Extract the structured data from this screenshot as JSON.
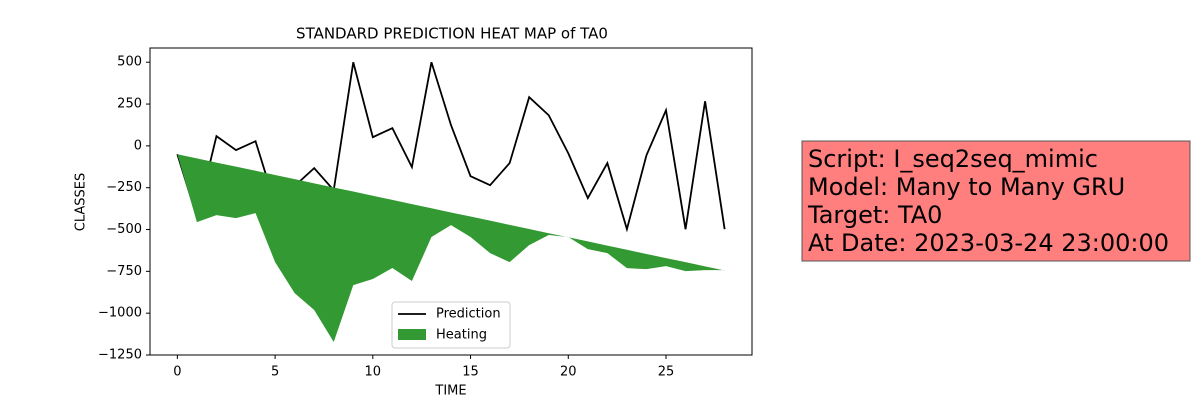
{
  "chart_data": {
    "type": "line",
    "title": "STANDARD PREDICTION HEAT MAP of TA0",
    "x_label": "TIME",
    "y_label": "CLASSES",
    "x": [
      0,
      1,
      2,
      3,
      4,
      5,
      6,
      7,
      8,
      9,
      10,
      11,
      12,
      13,
      14,
      15,
      16,
      17,
      18,
      19,
      20,
      21,
      22,
      23,
      24,
      25,
      26,
      27,
      28
    ],
    "series": [
      {
        "name": "Prediction",
        "color": "#000000",
        "kind": "line",
        "values": [
          -50,
          -425,
          58,
          -25,
          28,
          -348,
          -240,
          -133,
          -265,
          500,
          52,
          106,
          -127,
          500,
          124,
          -181,
          -235,
          -103,
          291,
          183,
          -44,
          -312,
          -103,
          -498,
          -56,
          213,
          -498,
          267,
          -498
        ]
      },
      {
        "name": "Heating",
        "color": "#339933",
        "kind": "area",
        "values": [
          -50,
          -456,
          -414,
          -432,
          -402,
          -695,
          -880,
          -981,
          -1172,
          -832,
          -796,
          -730,
          -808,
          -545,
          -474,
          -545,
          -641,
          -695,
          -593,
          -533,
          -545,
          -617,
          -641,
          -731,
          -737,
          -719,
          -749,
          -743,
          -743
        ],
        "baseline": [
          -50,
          -75,
          -100,
          -124,
          -149,
          -174,
          -199,
          -224,
          -249,
          -273,
          -298,
          -323,
          -348,
          -373,
          -398,
          -422,
          -447,
          -472,
          -497,
          -522,
          -546,
          -571,
          -596,
          -621,
          -646,
          -671,
          -695,
          -720,
          -745
        ]
      }
    ],
    "xlim": [
      -1.4,
      29.4
    ],
    "ylim": [
      -1250,
      585
    ],
    "xticks": [
      0,
      5,
      10,
      15,
      20,
      25
    ],
    "yticks": [
      500,
      250,
      0,
      {
        "value": -250,
        "label": "−250"
      },
      {
        "value": -500,
        "label": "−500"
      },
      {
        "value": -750,
        "label": "−750"
      },
      {
        "value": -1000,
        "label": "−1000"
      },
      {
        "value": -1250,
        "label": "−1250"
      }
    ],
    "grid": false,
    "legend": "lower center",
    "annotations": [
      "Script: I_seq2seq_mimic",
      "Model: Many to Many GRU",
      "Target: TA0",
      "At Date: 2023-03-24 23:00:00"
    ]
  }
}
